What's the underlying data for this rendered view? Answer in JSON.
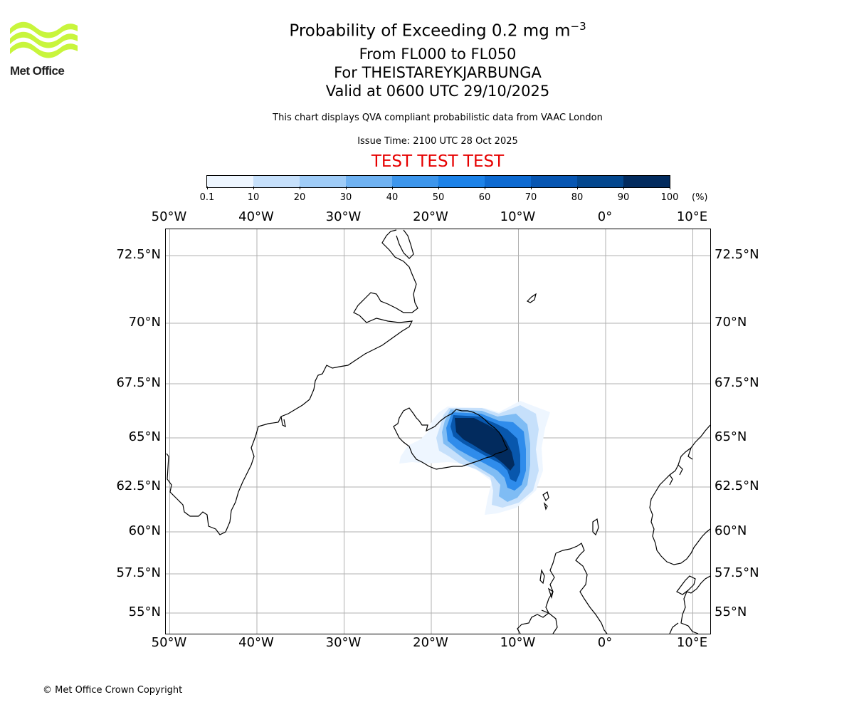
{
  "header": {
    "logo_text": "Met Office",
    "title_prefix": "Probability of Exceeding 0.2 mg m",
    "title_superscript": "−3",
    "levels": "From FL000 to FL050",
    "volcano": "For THEISTAREYKJARBUNGA",
    "valid_time": "Valid at 0600 UTC 29/10/2025",
    "description": "This chart displays QVA compliant probabilistic data from VAAC London",
    "issue_time": "Issue Time: 2100 UTC 28 Oct 2025",
    "test_banner": "TEST TEST TEST"
  },
  "colorbar": {
    "colors": [
      "#eef6ff",
      "#c6e0fb",
      "#9fccf7",
      "#6fb2f2",
      "#3d96ec",
      "#1c82e8",
      "#0d6ad1",
      "#0756b2",
      "#03478e",
      "#022b5e"
    ],
    "tick_labels": [
      "0.1",
      "10",
      "20",
      "30",
      "40",
      "50",
      "60",
      "70",
      "80",
      "90",
      "100"
    ],
    "unit": "(%)"
  },
  "map": {
    "lon_labels": [
      "50°W",
      "40°W",
      "30°W",
      "20°W",
      "10°W",
      "0°",
      "10°E"
    ],
    "lon_values": [
      -50,
      -40,
      -30,
      -20,
      -10,
      0,
      10
    ],
    "lat_labels": [
      "72.5°N",
      "70°N",
      "67.5°N",
      "65°N",
      "62.5°N",
      "60°N",
      "57.5°N",
      "55°N"
    ],
    "lat_values": [
      72.5,
      70,
      67.5,
      65,
      62.5,
      60,
      57.5,
      55
    ],
    "grid_color": "#b0b0b0",
    "coastline_color": "#000000"
  },
  "footer": {
    "copyright": "© Met Office Crown Copyright"
  }
}
